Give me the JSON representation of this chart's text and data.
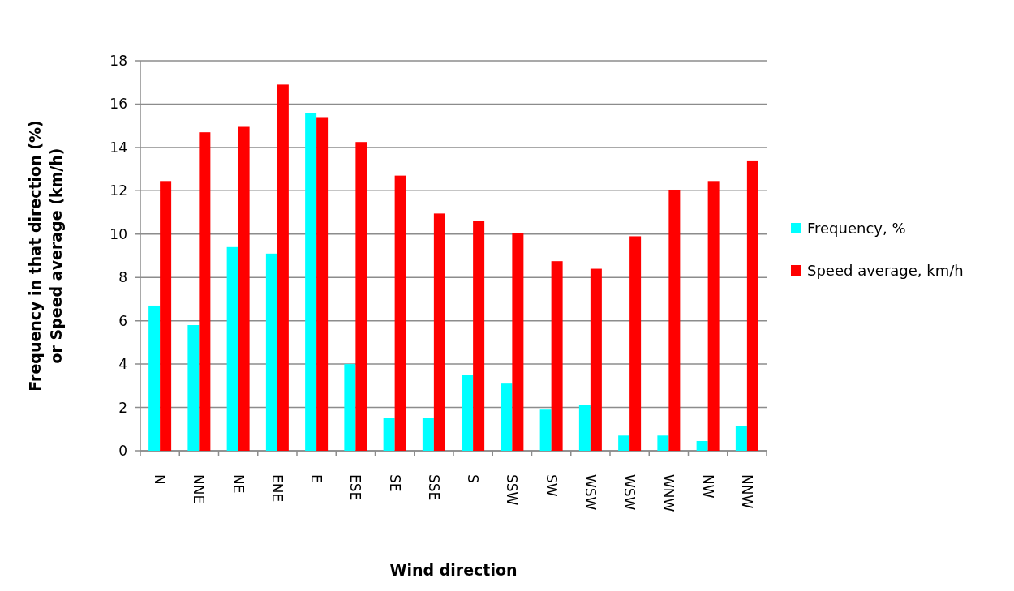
{
  "chart_data": {
    "type": "bar",
    "xlabel": "Wind direction",
    "ylabel": "Frequency in that direction (%)\nor Speed average (km/h)",
    "categories": [
      "N",
      "NNE",
      "NE",
      "ENE",
      "E",
      "ESE",
      "SE",
      "SSE",
      "S",
      "SSW",
      "SW",
      "WSW",
      "WSW",
      "WNW",
      "NW",
      "NNW"
    ],
    "series": [
      {
        "name": "Frequency, %",
        "color": "#00ffff",
        "values": [
          6.7,
          5.8,
          9.4,
          9.1,
          15.6,
          4.0,
          1.5,
          1.5,
          3.5,
          3.1,
          1.9,
          2.1,
          0.7,
          0.7,
          0.45,
          1.15
        ]
      },
      {
        "name": "Speed average, km/h",
        "color": "#ff0000",
        "values": [
          12.45,
          14.7,
          14.95,
          16.9,
          15.4,
          14.25,
          12.7,
          10.95,
          10.6,
          10.05,
          8.75,
          8.4,
          9.9,
          12.05,
          12.45,
          13.4
        ]
      }
    ],
    "ylim": [
      0,
      18
    ],
    "yticks": [
      0,
      2,
      4,
      6,
      8,
      10,
      12,
      14,
      16,
      18
    ],
    "grid": "y",
    "legend": "right"
  }
}
